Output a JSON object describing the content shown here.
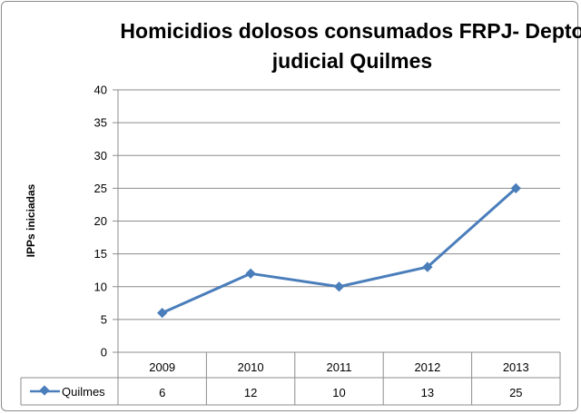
{
  "chart_data": {
    "type": "line",
    "title_lines": [
      "Homicidios dolosos consumados FRPJ- Depto",
      "judicial Quilmes"
    ],
    "ylabel": "IPPs iniciadas",
    "xlabel": "",
    "categories": [
      "2009",
      "2010",
      "2011",
      "2012",
      "2013"
    ],
    "y_ticks": [
      "0",
      "5",
      "10",
      "15",
      "20",
      "25",
      "30",
      "35",
      "40"
    ],
    "ylim": [
      0,
      40
    ],
    "grid": true,
    "legend": "data-table",
    "series": [
      {
        "name": "Quilmes",
        "values": [
          6,
          12,
          10,
          13,
          25
        ],
        "value_labels": [
          "6",
          "12",
          "10",
          "13",
          "25"
        ],
        "color": "#4a7ebb"
      }
    ]
  }
}
